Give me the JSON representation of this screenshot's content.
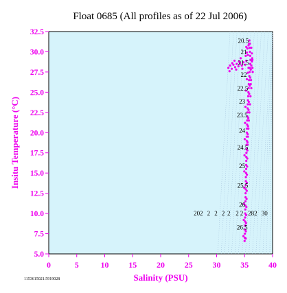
{
  "chart_data": {
    "type": "scatter",
    "title": "Float 0685  (All profiles as of 22 Jul 2006)",
    "xlabel": "Salinity (PSU)",
    "ylabel": "Insitu Temperature (°C)",
    "xlim": [
      0,
      40
    ],
    "ylim": [
      5.0,
      32.5
    ],
    "x_ticks": [
      "0",
      "5",
      "10",
      "15",
      "20",
      "25",
      "30",
      "35",
      "40"
    ],
    "y_ticks": [
      "5.0",
      "7.5",
      "10.0",
      "12.5",
      "15.0",
      "17.5",
      "20.0",
      "22.5",
      "25.0",
      "27.5",
      "30.0",
      "32.5"
    ],
    "grid": false,
    "plot_background": "#d6f3fb",
    "accent_color": "#ee00ee",
    "footer_id": "1153615021.5919028",
    "density_labels": [
      {
        "text": "20.5",
        "x": 33.8,
        "y": 31.1
      },
      {
        "text": "21",
        "x": 34.3,
        "y": 29.7
      },
      {
        "text": "21.5",
        "x": 33.8,
        "y": 28.4
      },
      {
        "text": "22",
        "x": 34.3,
        "y": 26.9
      },
      {
        "text": "22.5",
        "x": 33.7,
        "y": 25.2
      },
      {
        "text": "23",
        "x": 34.0,
        "y": 23.6
      },
      {
        "text": "23.5",
        "x": 33.6,
        "y": 21.9
      },
      {
        "text": "24",
        "x": 34.0,
        "y": 20.0
      },
      {
        "text": "24.5",
        "x": 33.7,
        "y": 17.9
      },
      {
        "text": "25",
        "x": 34.0,
        "y": 15.6
      },
      {
        "text": "25.5",
        "x": 33.7,
        "y": 13.2
      },
      {
        "text": "26",
        "x": 34.0,
        "y": 10.8
      },
      {
        "text": "26.5",
        "x": 33.6,
        "y": 8.0
      }
    ],
    "row_labels": [
      {
        "text": "20",
        "x": 25.9
      },
      {
        "text": "2",
        "x": 27.0
      },
      {
        "text": "2",
        "x": 28.3
      },
      {
        "text": "2",
        "x": 29.6
      },
      {
        "text": "2",
        "x": 30.9
      },
      {
        "text": "2",
        "x": 31.9
      },
      {
        "text": "2",
        "x": 33.4
      },
      {
        "text": "2",
        "x": 34.2
      },
      {
        "text": "28",
        "x": 35.6
      },
      {
        "text": "2",
        "x": 36.7
      },
      {
        "text": "30",
        "x": 38.0
      }
    ],
    "row_labels_y": 10.0,
    "series": [
      {
        "points": [
          [
            35.0,
            6.6
          ],
          [
            35.03,
            7.0
          ],
          [
            35.05,
            7.5
          ],
          [
            35.07,
            8.0
          ],
          [
            35.08,
            8.5
          ],
          [
            35.1,
            9.0
          ],
          [
            35.1,
            9.5
          ],
          [
            35.12,
            10.0
          ],
          [
            35.13,
            10.5
          ],
          [
            35.14,
            11.0
          ],
          [
            35.15,
            11.5
          ],
          [
            35.17,
            12.0
          ],
          [
            35.18,
            12.5
          ],
          [
            35.2,
            13.0
          ],
          [
            35.2,
            13.5
          ],
          [
            35.22,
            14.0
          ],
          [
            35.23,
            14.5
          ],
          [
            35.25,
            15.0
          ],
          [
            35.27,
            15.5
          ],
          [
            35.28,
            16.0
          ],
          [
            35.3,
            16.5
          ],
          [
            35.3,
            17.0
          ],
          [
            35.32,
            17.5
          ],
          [
            35.33,
            18.0
          ],
          [
            35.35,
            18.5
          ],
          [
            35.37,
            19.0
          ],
          [
            35.38,
            19.5
          ],
          [
            35.4,
            20.0
          ],
          [
            35.42,
            20.5
          ],
          [
            35.45,
            21.0
          ],
          [
            35.47,
            21.5
          ],
          [
            35.5,
            22.0
          ],
          [
            35.52,
            22.5
          ],
          [
            35.55,
            23.0
          ],
          [
            35.58,
            23.5
          ],
          [
            35.6,
            24.0
          ],
          [
            35.65,
            24.5
          ],
          [
            35.68,
            25.0
          ],
          [
            35.72,
            25.5
          ],
          [
            35.75,
            26.0
          ],
          [
            35.8,
            26.5
          ],
          [
            35.85,
            27.0
          ],
          [
            35.9,
            27.5
          ],
          [
            35.95,
            28.0
          ],
          [
            36.0,
            28.5
          ],
          [
            36.05,
            29.0
          ],
          [
            36.0,
            29.5
          ],
          [
            35.95,
            30.0
          ],
          [
            35.9,
            30.5
          ],
          [
            35.8,
            31.0
          ],
          [
            35.2,
            6.9
          ],
          [
            35.22,
            7.8
          ],
          [
            35.25,
            8.8
          ],
          [
            35.28,
            9.8
          ],
          [
            35.32,
            10.8
          ],
          [
            35.35,
            11.8
          ],
          [
            35.38,
            12.8
          ],
          [
            35.4,
            13.8
          ],
          [
            35.42,
            14.8
          ],
          [
            35.45,
            15.8
          ],
          [
            35.48,
            16.8
          ],
          [
            35.5,
            17.8
          ],
          [
            35.52,
            18.8
          ],
          [
            35.55,
            19.8
          ],
          [
            35.6,
            20.8
          ],
          [
            35.65,
            21.8
          ],
          [
            35.7,
            22.8
          ],
          [
            35.75,
            23.8
          ],
          [
            35.82,
            24.8
          ],
          [
            35.9,
            25.8
          ],
          [
            36.0,
            26.8
          ],
          [
            36.1,
            27.8
          ],
          [
            36.2,
            28.3
          ],
          [
            36.3,
            28.8
          ],
          [
            36.35,
            29.2
          ],
          [
            34.8,
            7.2
          ],
          [
            34.85,
            9.2
          ],
          [
            34.88,
            11.2
          ],
          [
            34.92,
            13.2
          ],
          [
            34.95,
            15.2
          ],
          [
            34.98,
            17.2
          ],
          [
            35.02,
            19.2
          ],
          [
            35.08,
            21.2
          ],
          [
            35.15,
            23.2
          ],
          [
            35.25,
            25.2
          ],
          [
            35.4,
            26.6
          ],
          [
            35.55,
            27.4
          ],
          [
            35.7,
            28.0
          ],
          [
            35.6,
            29.6
          ],
          [
            35.5,
            30.4
          ],
          [
            32.1,
            28.0
          ],
          [
            32.4,
            28.3
          ],
          [
            32.7,
            27.9
          ],
          [
            33.0,
            28.4
          ],
          [
            33.3,
            28.1
          ],
          [
            33.6,
            28.5
          ],
          [
            33.9,
            28.2
          ],
          [
            34.2,
            28.6
          ],
          [
            34.5,
            28.3
          ],
          [
            34.8,
            28.7
          ],
          [
            35.1,
            28.4
          ],
          [
            32.3,
            27.6
          ],
          [
            32.8,
            28.6
          ],
          [
            33.5,
            27.8
          ],
          [
            34.0,
            28.8
          ],
          [
            34.6,
            27.9
          ],
          [
            35.3,
            28.9
          ],
          [
            33.2,
            28.9
          ],
          [
            34.3,
            29.2
          ],
          [
            35.2,
            29.5
          ],
          [
            36.4,
            28.0
          ],
          [
            36.45,
            27.5
          ],
          [
            36.4,
            29.0
          ],
          [
            36.3,
            29.8
          ],
          [
            36.2,
            30.5
          ],
          [
            35.95,
            31.0
          ],
          [
            35.85,
            31.4
          ],
          [
            35.7,
            30.8
          ],
          [
            35.4,
            29.9
          ],
          [
            35.3,
            30.6
          ],
          [
            36.1,
            26.0
          ],
          [
            36.15,
            26.5
          ],
          [
            36.2,
            25.5
          ],
          [
            36.05,
            24.5
          ],
          [
            35.95,
            23.5
          ],
          [
            35.85,
            22.5
          ],
          [
            35.75,
            21.5
          ],
          [
            35.68,
            20.5
          ],
          [
            35.6,
            19.5
          ],
          [
            35.55,
            18.5
          ]
        ]
      }
    ]
  }
}
